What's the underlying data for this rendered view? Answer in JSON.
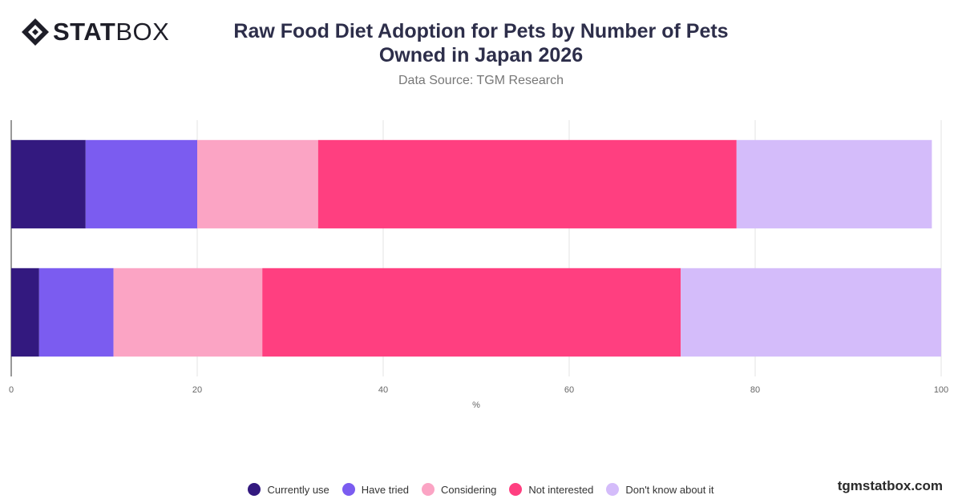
{
  "brand": {
    "logo_bold": "STAT",
    "logo_light": "BOX",
    "footer": "tgmstatbox.com"
  },
  "header": {
    "title": "Raw Food Diet Adoption for Pets by Number of Pets Owned in Japan 2026",
    "subtitle": "Data Source: TGM Research"
  },
  "chart_data": {
    "type": "bar",
    "orientation": "horizontal",
    "stacked": true,
    "title": "Raw Food Diet Adoption for Pets by Number of Pets Owned in Japan 2026",
    "subtitle": "Data Source: TGM Research",
    "xlabel": "%",
    "ylabel": "",
    "xlim": [
      0,
      100
    ],
    "x_ticks": [
      0,
      20,
      40,
      60,
      80,
      100
    ],
    "categories": [
      "",
      ""
    ],
    "grid": true,
    "legend_position": "bottom",
    "series": [
      {
        "name": "Currently use",
        "color": "#33197f",
        "values": [
          8,
          3
        ]
      },
      {
        "name": "Have tried",
        "color": "#7b5cf0",
        "values": [
          12,
          8
        ]
      },
      {
        "name": "Considering",
        "color": "#fba4c4",
        "values": [
          13,
          16
        ]
      },
      {
        "name": "Not interested",
        "color": "#ff3f80",
        "values": [
          45,
          45
        ]
      },
      {
        "name": "Don't know about it",
        "color": "#d4bcfa",
        "values": [
          21,
          28
        ]
      }
    ]
  }
}
